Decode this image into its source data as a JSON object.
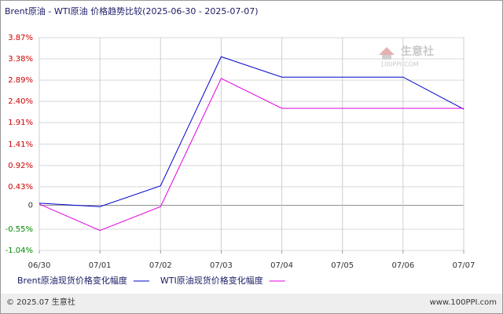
{
  "chart_data": {
    "type": "line",
    "title": "Brent原油 - WTI原油 价格趋势比较(2025-06-30 - 2025-07-07)",
    "categories": [
      "06/30",
      "07/01",
      "07/02",
      "07/03",
      "07/04",
      "07/05",
      "07/06",
      "07/07"
    ],
    "series": [
      {
        "name": "Brent原油现货价格变化幅度",
        "color": "#0000cc",
        "values": [
          0.05,
          -0.03,
          0.45,
          3.43,
          2.96,
          2.96,
          2.96,
          2.22
        ]
      },
      {
        "name": "WTI原油现货价格变化幅度",
        "color": "#e000e0",
        "values": [
          0.03,
          -0.58,
          -0.03,
          2.93,
          2.24,
          2.24,
          2.24,
          2.24
        ]
      }
    ],
    "ylim": [
      -1.04,
      3.87
    ],
    "yticks": [
      {
        "value": 3.87,
        "label": "3.87%"
      },
      {
        "value": 3.38,
        "label": "3.38%"
      },
      {
        "value": 2.89,
        "label": "2.89%"
      },
      {
        "value": 2.4,
        "label": "2.40%"
      },
      {
        "value": 1.91,
        "label": "1.91%"
      },
      {
        "value": 1.41,
        "label": "1.41%"
      },
      {
        "value": 0.92,
        "label": "0.92%"
      },
      {
        "value": 0.43,
        "label": "0.43%"
      },
      0,
      {
        "value": -0.55,
        "label": "-0.55%"
      },
      {
        "value": -1.04,
        "label": "-1.04%"
      }
    ],
    "grid": true
  },
  "watermark": {
    "name": "生意社",
    "site": "100PPI.COM"
  },
  "footer": {
    "copyright": "© 2025.07 生意社",
    "site": "www.100PPI.com"
  }
}
